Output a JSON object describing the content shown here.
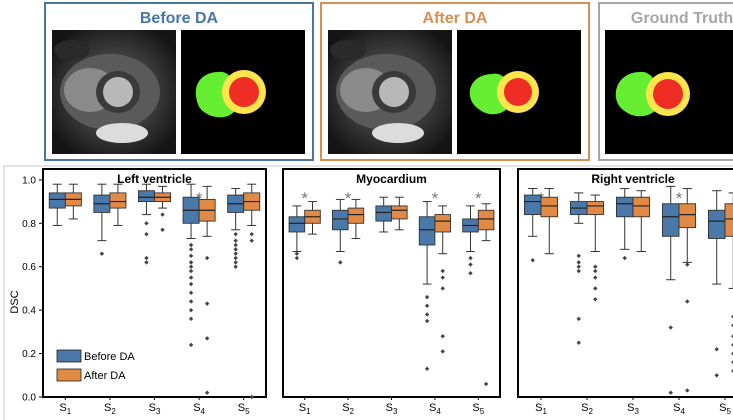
{
  "colors": {
    "before": "#4a78a8",
    "after": "#e08a45",
    "before_frame": "#4a76a6",
    "after_frame": "#d98f52",
    "gt_frame": "#a6a6a6",
    "lv_green": "#66ee33",
    "myo_yellow": "#ffe44d",
    "rv_red": "#ee2e24"
  },
  "images": [
    {
      "title": "Before DA",
      "panels": [
        "mri-scan",
        "segmentation-mask"
      ]
    },
    {
      "title": "After DA",
      "panels": [
        "mri-scan",
        "segmentation-mask"
      ]
    },
    {
      "title": "Ground Truth",
      "panels": [
        "segmentation-mask"
      ]
    }
  ],
  "chart_data": [
    {
      "type": "box",
      "title": "Left ventricle",
      "ylabel": "DSC",
      "ylim": [
        0,
        1.05
      ],
      "yticks": [
        "0.0",
        "0.2",
        "0.4",
        "0.6",
        "0.8",
        "1.0"
      ],
      "categories": [
        "S1",
        "S2",
        "S3",
        "S4",
        "S5"
      ],
      "significance": [
        false,
        false,
        false,
        true,
        true
      ],
      "legend": [
        "Before DA",
        "After DA"
      ],
      "legend_position": "bottom-left",
      "series": [
        {
          "name": "Before DA",
          "boxes": [
            {
              "q1": 0.87,
              "median": 0.91,
              "q3": 0.94,
              "low": 0.79,
              "high": 0.98,
              "outliers": []
            },
            {
              "q1": 0.85,
              "median": 0.89,
              "q3": 0.93,
              "low": 0.72,
              "high": 0.98,
              "outliers": [
                0.66
              ]
            },
            {
              "q1": 0.9,
              "median": 0.92,
              "q3": 0.95,
              "low": 0.84,
              "high": 0.98,
              "outliers": [
                0.8,
                0.75,
                0.64,
                0.62
              ]
            },
            {
              "q1": 0.8,
              "median": 0.86,
              "q3": 0.92,
              "low": 0.73,
              "high": 0.98,
              "outliers": [
                0.7,
                0.68,
                0.65,
                0.62,
                0.6,
                0.58,
                0.55,
                0.52,
                0.48,
                0.44,
                0.4,
                0.36,
                0.24
              ]
            },
            {
              "q1": 0.85,
              "median": 0.89,
              "q3": 0.93,
              "low": 0.77,
              "high": 0.96,
              "outliers": [
                0.75,
                0.72,
                0.7,
                0.68,
                0.66,
                0.64,
                0.62,
                0.6
              ]
            }
          ]
        },
        {
          "name": "After DA",
          "boxes": [
            {
              "q1": 0.88,
              "median": 0.91,
              "q3": 0.94,
              "low": 0.82,
              "high": 0.98,
              "outliers": []
            },
            {
              "q1": 0.87,
              "median": 0.9,
              "q3": 0.94,
              "low": 0.79,
              "high": 0.98,
              "outliers": []
            },
            {
              "q1": 0.9,
              "median": 0.92,
              "q3": 0.94,
              "low": 0.87,
              "high": 0.97,
              "outliers": [
                0.84,
                0.77
              ]
            },
            {
              "q1": 0.81,
              "median": 0.86,
              "q3": 0.91,
              "low": 0.74,
              "high": 0.97,
              "outliers": [
                0.64,
                0.43,
                0.27,
                0.02
              ]
            },
            {
              "q1": 0.86,
              "median": 0.9,
              "q3": 0.94,
              "low": 0.79,
              "high": 0.98,
              "outliers": [
                0.75,
                0.72,
                0.0
              ]
            }
          ]
        }
      ]
    },
    {
      "type": "box",
      "title": "Myocardium",
      "ylim": [
        0,
        1.05
      ],
      "categories": [
        "S1",
        "S2",
        "S3",
        "S4",
        "S5"
      ],
      "significance": [
        true,
        true,
        false,
        true,
        true
      ],
      "series": [
        {
          "name": "Before DA",
          "boxes": [
            {
              "q1": 0.76,
              "median": 0.8,
              "q3": 0.83,
              "low": 0.67,
              "high": 0.88,
              "outliers": [
                0.66,
                0.64
              ]
            },
            {
              "q1": 0.77,
              "median": 0.82,
              "q3": 0.86,
              "low": 0.67,
              "high": 0.91,
              "outliers": [
                0.62
              ]
            },
            {
              "q1": 0.81,
              "median": 0.85,
              "q3": 0.88,
              "low": 0.76,
              "high": 0.92,
              "outliers": []
            },
            {
              "q1": 0.7,
              "median": 0.77,
              "q3": 0.83,
              "low": 0.52,
              "high": 0.9,
              "outliers": [
                0.46,
                0.42,
                0.38,
                0.35,
                0.13
              ]
            },
            {
              "q1": 0.76,
              "median": 0.79,
              "q3": 0.82,
              "low": 0.67,
              "high": 0.88,
              "outliers": [
                0.64,
                0.61,
                0.57
              ]
            }
          ]
        },
        {
          "name": "After DA",
          "boxes": [
            {
              "q1": 0.8,
              "median": 0.83,
              "q3": 0.86,
              "low": 0.75,
              "high": 0.9,
              "outliers": []
            },
            {
              "q1": 0.8,
              "median": 0.84,
              "q3": 0.87,
              "low": 0.73,
              "high": 0.91,
              "outliers": []
            },
            {
              "q1": 0.82,
              "median": 0.86,
              "q3": 0.88,
              "low": 0.77,
              "high": 0.92,
              "outliers": []
            },
            {
              "q1": 0.76,
              "median": 0.81,
              "q3": 0.84,
              "low": 0.66,
              "high": 0.88,
              "outliers": [
                0.58,
                0.55,
                0.5,
                0.28,
                0.21
              ]
            },
            {
              "q1": 0.77,
              "median": 0.82,
              "q3": 0.86,
              "low": 0.72,
              "high": 0.89,
              "outliers": [
                0.06
              ]
            }
          ]
        }
      ]
    },
    {
      "type": "box",
      "title": "Right ventricle",
      "ylim": [
        0,
        1.05
      ],
      "categories": [
        "S1",
        "S2",
        "S3",
        "S4",
        "S5"
      ],
      "significance": [
        true,
        false,
        false,
        true,
        false
      ],
      "series": [
        {
          "name": "Before DA",
          "boxes": [
            {
              "q1": 0.84,
              "median": 0.9,
              "q3": 0.93,
              "low": 0.74,
              "high": 0.96,
              "outliers": [
                0.63
              ]
            },
            {
              "q1": 0.84,
              "median": 0.87,
              "q3": 0.9,
              "low": 0.8,
              "high": 0.94,
              "outliers": [
                0.65,
                0.62,
                0.6,
                0.58,
                0.36,
                0.25
              ]
            },
            {
              "q1": 0.83,
              "median": 0.89,
              "q3": 0.92,
              "low": 0.68,
              "high": 0.96,
              "outliers": [
                0.64
              ]
            },
            {
              "q1": 0.74,
              "median": 0.83,
              "q3": 0.89,
              "low": 0.54,
              "high": 0.97,
              "outliers": [
                0.32,
                0.02
              ]
            },
            {
              "q1": 0.73,
              "median": 0.81,
              "q3": 0.86,
              "low": 0.52,
              "high": 0.95,
              "outliers": [
                0.22,
                0.1
              ]
            }
          ]
        },
        {
          "name": "After DA",
          "boxes": [
            {
              "q1": 0.83,
              "median": 0.88,
              "q3": 0.92,
              "low": 0.66,
              "high": 0.96,
              "outliers": []
            },
            {
              "q1": 0.84,
              "median": 0.88,
              "q3": 0.9,
              "low": 0.67,
              "high": 0.93,
              "outliers": [
                0.6,
                0.58,
                0.55,
                0.5,
                0.45
              ]
            },
            {
              "q1": 0.83,
              "median": 0.88,
              "q3": 0.92,
              "low": 0.67,
              "high": 0.95,
              "outliers": []
            },
            {
              "q1": 0.78,
              "median": 0.84,
              "q3": 0.89,
              "low": 0.62,
              "high": 0.96,
              "outliers": [
                0.61,
                0.44,
                0.03
              ]
            },
            {
              "q1": 0.74,
              "median": 0.82,
              "q3": 0.89,
              "low": 0.5,
              "high": 0.94,
              "outliers": [
                0.37,
                0.33,
                0.28,
                0.24,
                0.2,
                0.16,
                0.12
              ]
            }
          ]
        }
      ]
    }
  ]
}
